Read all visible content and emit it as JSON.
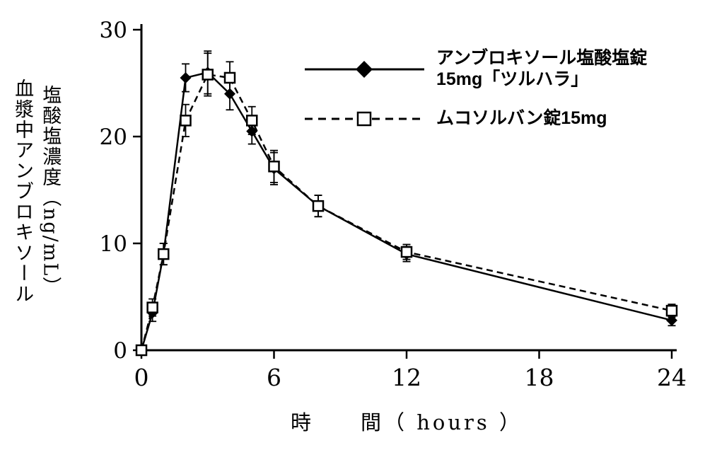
{
  "chart_data": {
    "type": "line",
    "title": "",
    "xlabel": "時　　間（ hours ）",
    "ylabel_line1": "血漿中アンブロキソール",
    "ylabel_line2": "塩酸塩濃度（ng/mL）",
    "xlim": [
      0,
      24
    ],
    "ylim": [
      0,
      30
    ],
    "xticks": [
      0,
      6,
      12,
      18,
      24
    ],
    "yticks": [
      0,
      10,
      20,
      30
    ],
    "grid": false,
    "legend_position": "upper-right-inside",
    "x": [
      0,
      0.5,
      1,
      2,
      3,
      4,
      5,
      6,
      8,
      12,
      24
    ],
    "series": [
      {
        "name": "アンブロキソール塩酸塩錠15mg「ツルハラ」",
        "line": "solid",
        "marker": "filled-diamond",
        "color": "#000000",
        "values": [
          0,
          3.5,
          9.0,
          25.5,
          26.0,
          24.0,
          20.5,
          17.0,
          13.5,
          9.0,
          2.8
        ],
        "errors": [
          0,
          0.8,
          1.0,
          1.3,
          2.0,
          1.5,
          1.2,
          1.5,
          1.0,
          0.7,
          0.5
        ]
      },
      {
        "name": "ムコソルバン錠15mg",
        "line": "dashed",
        "marker": "open-square",
        "color": "#000000",
        "values": [
          0,
          4.0,
          9.0,
          21.5,
          25.8,
          25.5,
          21.5,
          17.2,
          13.5,
          9.2,
          3.7
        ],
        "errors": [
          0,
          0.8,
          1.0,
          1.5,
          2.0,
          1.5,
          1.3,
          1.5,
          1.0,
          0.7,
          0.6
        ]
      }
    ]
  },
  "legend": {
    "items": [
      {
        "label_line1": "アンブロキソール塩酸塩錠",
        "label_line2": "15mg「ツルハラ」",
        "marker": "filled-diamond",
        "line": "solid"
      },
      {
        "label_line1": "ムコソルバン錠15mg",
        "label_line2": "",
        "marker": "open-square",
        "line": "dashed"
      }
    ]
  }
}
